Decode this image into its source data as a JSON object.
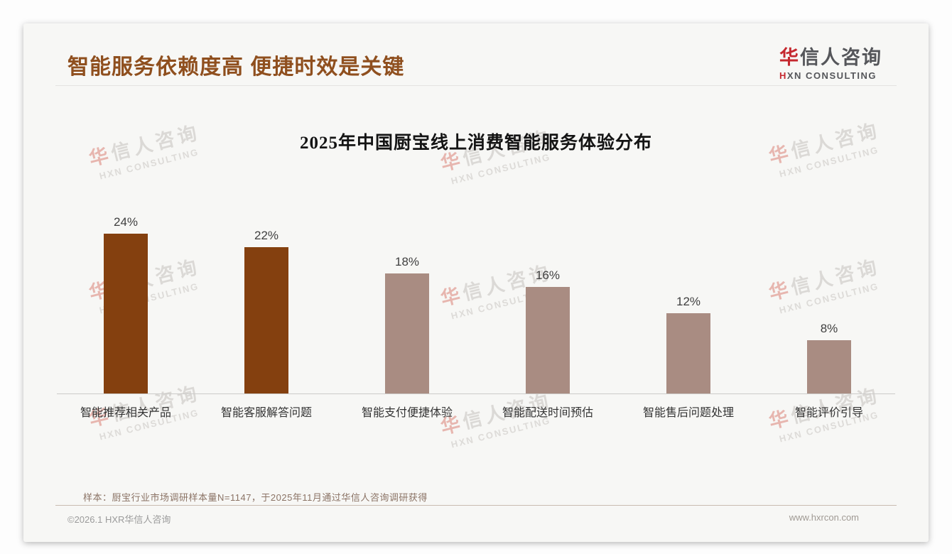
{
  "header": {
    "title": "智能服务依赖度高 便捷时效是关键",
    "logo": {
      "cn_first": "华",
      "cn_rest": "信人咨询",
      "en_first": "H",
      "en_rest": "XN CONSULTING"
    }
  },
  "chart_data": {
    "type": "bar",
    "title": "2025年中国厨宝线上消费智能服务体验分布",
    "categories": [
      "智能推荐相关产品",
      "智能客服解答问题",
      "智能支付便捷体验",
      "智能配送时间预估",
      "智能售后问题处理",
      "智能评价引导"
    ],
    "values": [
      24,
      22,
      18,
      16,
      12,
      8
    ],
    "value_labels": [
      "24%",
      "22%",
      "18%",
      "16%",
      "12%",
      "8%"
    ],
    "unit": "%",
    "ylim": [
      0,
      25
    ],
    "grid": false,
    "legend": false,
    "bar_colors": [
      "#84400f",
      "#84400f",
      "#a98c82",
      "#a98c82",
      "#a98c82",
      "#a98c82"
    ]
  },
  "watermark": {
    "line1_first": "华",
    "line1_rest": "信人咨询",
    "line2": "HXN CONSULTING"
  },
  "footnote": "样本：厨宝行业市场调研样本量N=1147，于2025年11月通过华信人咨询调研获得",
  "footer": {
    "copyright": "©2026.1 HXR华信人咨询",
    "website": "www.hxrcon.com"
  },
  "colors": {
    "title_brown": "#8f4f1e",
    "bar_dark": "#84400f",
    "bar_light": "#a98c82",
    "logo_red": "#c5282f",
    "axis_gray": "#cccbc9"
  }
}
